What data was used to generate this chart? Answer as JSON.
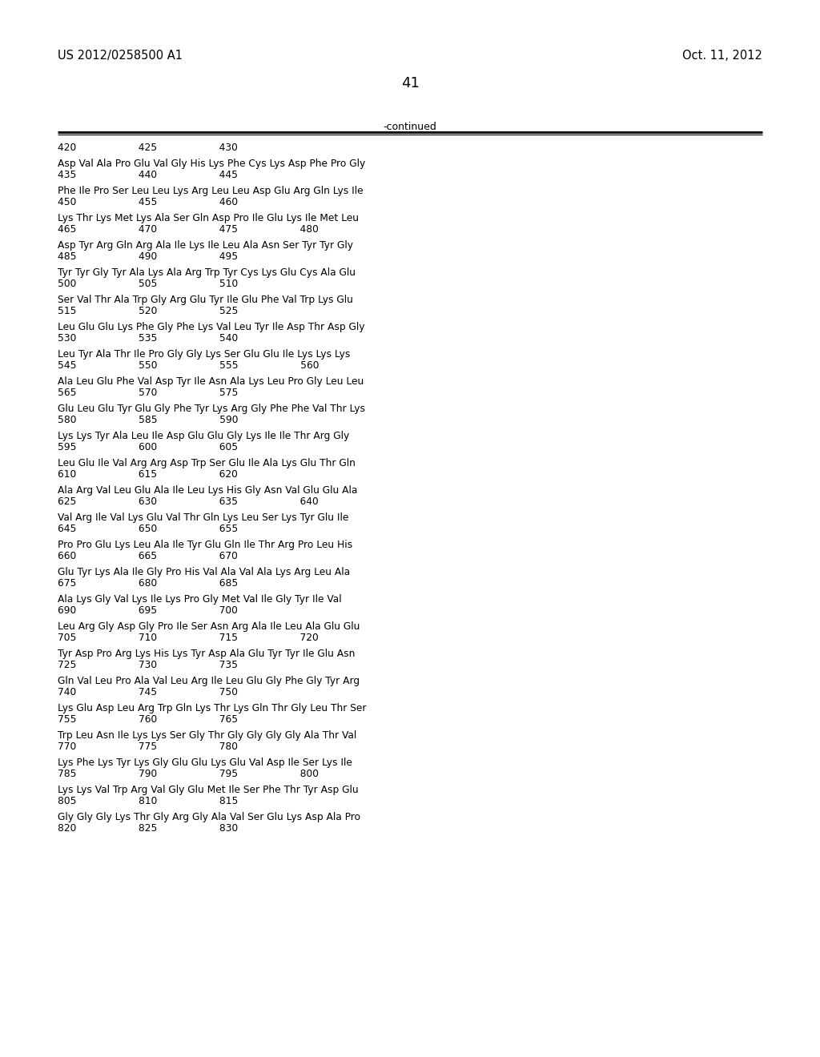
{
  "bg_color": "#ffffff",
  "text_color": "#000000",
  "header_left": "US 2012/0258500 A1",
  "header_right": "Oct. 11, 2012",
  "page_number": "41",
  "continued_label": "-continued",
  "seq_blocks": [
    {
      "seq": "Asp Val Ala Pro Glu Val Gly His Lys Phe Cys Lys Asp Phe Pro Gly",
      "num_before": "420                    425                    430",
      "num_after": "435                    440                    445"
    },
    {
      "seq": "Phe Ile Pro Ser Leu Leu Lys Arg Leu Leu Asp Glu Arg Gln Lys Ile",
      "num_before": "450                    455                    460",
      "num_after": null
    },
    {
      "seq": "Lys Thr Lys Met Lys Ala Ser Gln Asp Pro Ile Glu Lys Ile Met Leu",
      "num_before": "465                    470                    475                    480",
      "num_after": null
    },
    {
      "seq": "Asp Tyr Arg Gln Arg Ala Ile Lys Ile Leu Ala Asn Ser Tyr Tyr Gly",
      "num_before": "485                    490                    495",
      "num_after": null
    },
    {
      "seq": "Tyr Tyr Gly Tyr Ala Lys Ala Arg Trp Tyr Cys Lys Glu Cys Ala Glu",
      "num_before": "500                    505                    510",
      "num_after": null
    },
    {
      "seq": "Ser Val Thr Ala Trp Gly Arg Glu Tyr Ile Glu Phe Val Trp Lys Glu",
      "num_before": "515                    520                    525",
      "num_after": null
    },
    {
      "seq": "Leu Glu Glu Lys Phe Gly Phe Lys Val Leu Tyr Ile Asp Thr Asp Gly",
      "num_before": "530                    535                    540",
      "num_after": null
    },
    {
      "seq": "Leu Tyr Ala Thr Ile Pro Gly Gly Lys Ser Glu Glu Ile Lys Lys Lys",
      "num_before": "545                    550                    555                    560",
      "num_after": null
    },
    {
      "seq": "Ala Leu Glu Phe Val Asp Tyr Ile Asn Ala Lys Leu Pro Gly Leu Leu",
      "num_before": "565                    570                    575",
      "num_after": null
    },
    {
      "seq": "Glu Leu Glu Tyr Glu Gly Phe Tyr Lys Arg Gly Phe Phe Val Thr Lys",
      "num_before": "580                    585                    590",
      "num_after": null
    },
    {
      "seq": "Lys Lys Tyr Ala Leu Ile Asp Glu Glu Gly Lys Ile Ile Thr Arg Gly",
      "num_before": "595                    600                    605",
      "num_after": null
    },
    {
      "seq": "Leu Glu Ile Val Arg Arg Asp Trp Ser Glu Ile Ala Lys Glu Thr Gln",
      "num_before": "610                    615                    620",
      "num_after": null
    },
    {
      "seq": "Ala Arg Val Leu Glu Ala Ile Leu Lys His Gly Asn Val Glu Glu Ala",
      "num_before": "625                    630                    635                    640",
      "num_after": null
    },
    {
      "seq": "Val Arg Ile Val Lys Glu Val Thr Gln Lys Leu Ser Lys Tyr Glu Ile",
      "num_before": "645                    650                    655",
      "num_after": null
    },
    {
      "seq": "Pro Pro Glu Lys Leu Ala Ile Tyr Glu Gln Ile Thr Arg Pro Leu His",
      "num_before": "660                    665                    670",
      "num_after": null
    },
    {
      "seq": "Glu Tyr Lys Ala Ile Gly Pro His Val Ala Val Ala Lys Arg Leu Ala",
      "num_before": "675                    680                    685",
      "num_after": null
    },
    {
      "seq": "Ala Lys Gly Val Lys Ile Lys Pro Gly Met Val Ile Gly Tyr Ile Val",
      "num_before": "690                    695                    700",
      "num_after": null
    },
    {
      "seq": "Leu Arg Gly Asp Gly Pro Ile Ser Asn Arg Ala Ile Leu Ala Glu Glu",
      "num_before": "705                    710                    715                    720",
      "num_after": null
    },
    {
      "seq": "Tyr Asp Pro Arg Lys His Lys Tyr Asp Ala Glu Tyr Tyr Ile Glu Asn",
      "num_before": "725                    730                    735",
      "num_after": null
    },
    {
      "seq": "Gln Val Leu Pro Ala Val Leu Arg Ile Leu Glu Gly Phe Gly Tyr Arg",
      "num_before": "740                    745                    750",
      "num_after": null
    },
    {
      "seq": "Lys Glu Asp Leu Arg Trp Gln Lys Thr Lys Gln Thr Gly Leu Thr Ser",
      "num_before": "755                    760                    765",
      "num_after": null
    },
    {
      "seq": "Trp Leu Asn Ile Lys Lys Ser Gly Thr Gly Gly Gly Gly Ala Thr Val",
      "num_before": "770                    775                    780",
      "num_after": null
    },
    {
      "seq": "Lys Phe Lys Tyr Lys Gly Glu Glu Lys Glu Val Asp Ile Ser Lys Ile",
      "num_before": "785                    790                    795                    800",
      "num_after": null
    },
    {
      "seq": "Lys Lys Val Trp Arg Val Gly Glu Met Ile Ser Phe Thr Tyr Asp Glu",
      "num_before": "805                    810                    815",
      "num_after": null
    },
    {
      "seq": "Gly Gly Gly Lys Thr Gly Arg Gly Ala Val Ser Glu Lys Asp Ala Pro",
      "num_before": "820                    825                    830",
      "num_after": null
    }
  ]
}
